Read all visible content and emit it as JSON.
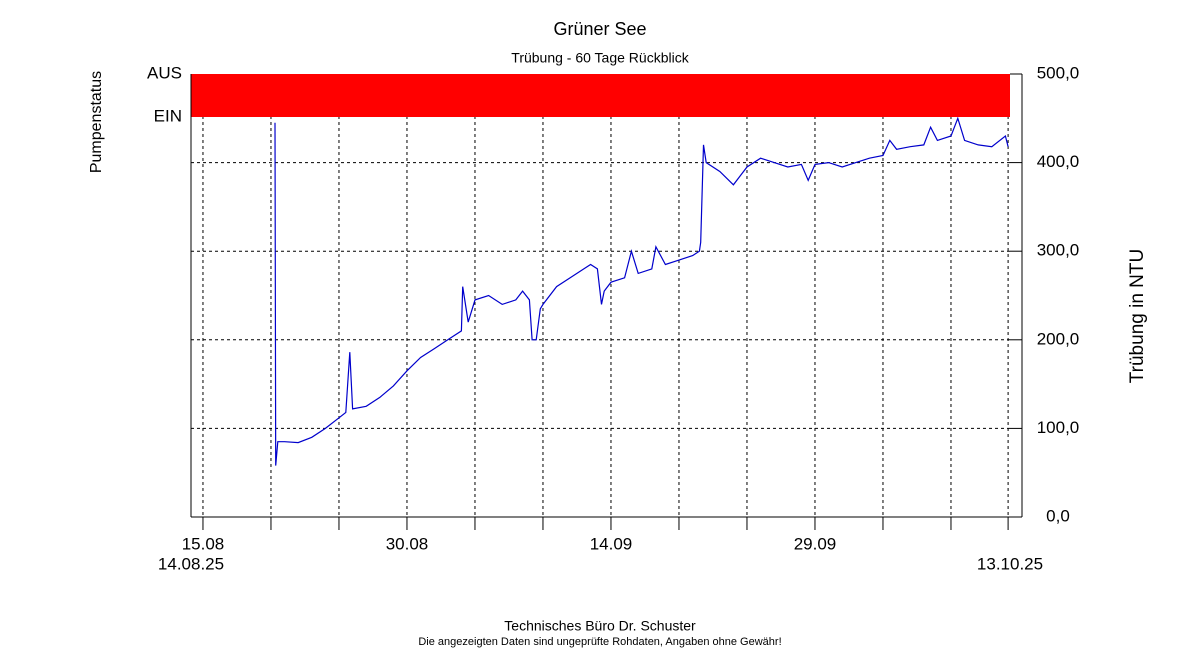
{
  "chart_data": {
    "type": "line",
    "title": "Grüner See",
    "subtitle": "Trübung - 60 Tage Rückblick",
    "y_label": "Trübung in NTU",
    "color": "#0000cc",
    "x": [
      5.3,
      5.35,
      5.5,
      6,
      7,
      8,
      9,
      10,
      10.5,
      10.8,
      11,
      12,
      13,
      14,
      15,
      16,
      17,
      18,
      19,
      19.1,
      19.5,
      20,
      21,
      22,
      23,
      23.5,
      24,
      24.2,
      24.5,
      24.8,
      25,
      26,
      27,
      28,
      28.5,
      29,
      29.3,
      29.5,
      30,
      31,
      31.5,
      32,
      33,
      33.3,
      34,
      35,
      36,
      36.5,
      36.6,
      36.8,
      37,
      38,
      39,
      39.5,
      40,
      41,
      42,
      43,
      44,
      44.5,
      45,
      46,
      47,
      48,
      49,
      50,
      50.5,
      51,
      52,
      53,
      53.5,
      54,
      55,
      55.5,
      56,
      57,
      58,
      59,
      59.2
    ],
    "values": [
      445,
      58,
      85,
      85,
      84,
      90,
      100,
      112,
      118,
      186,
      122,
      125,
      135,
      148,
      165,
      180,
      190,
      200,
      210,
      260,
      220,
      245,
      250,
      240,
      245,
      255,
      245,
      200,
      200,
      235,
      240,
      260,
      270,
      280,
      285,
      280,
      240,
      255,
      265,
      270,
      300,
      275,
      280,
      305,
      285,
      290,
      295,
      300,
      310,
      420,
      400,
      390,
      375,
      385,
      395,
      405,
      400,
      395,
      398,
      380,
      398,
      400,
      395,
      400,
      405,
      408,
      425,
      415,
      418,
      420,
      440,
      425,
      430,
      450,
      425,
      420,
      418,
      430,
      418
    ],
    "xlim": [
      -0.88,
      59.34
    ],
    "xticks": [
      {
        "value": 0,
        "label": "15.08"
      },
      {
        "value": 15,
        "label": "30.08"
      },
      {
        "value": 30,
        "label": "14.09"
      },
      {
        "value": 45,
        "label": "29.09"
      }
    ],
    "x_minor_ticks": [
      5,
      10,
      20,
      25,
      35,
      40,
      50,
      55,
      59.2
    ],
    "x_range_labels": [
      "14.08.25",
      "13.10.25"
    ],
    "ylim": [
      0,
      500
    ],
    "yticks": [
      {
        "value": 0,
        "label": "0,0"
      },
      {
        "value": 100,
        "label": "100,0"
      },
      {
        "value": 200,
        "label": "200,0"
      },
      {
        "value": 300,
        "label": "300,0"
      },
      {
        "value": 400,
        "label": "400,0"
      },
      {
        "value": 500,
        "label": "500,0"
      }
    ],
    "grid": true,
    "pump_status": {
      "label": "Pumpenstatus",
      "states": [
        "AUS",
        "EIN"
      ],
      "state": "AUS",
      "color": "#ff0000"
    },
    "footer": "Technisches Büro Dr. Schuster",
    "disclaimer": "Die angezeigten Daten sind ungeprüfte Rohdaten, Angaben ohne Gewähr!"
  }
}
